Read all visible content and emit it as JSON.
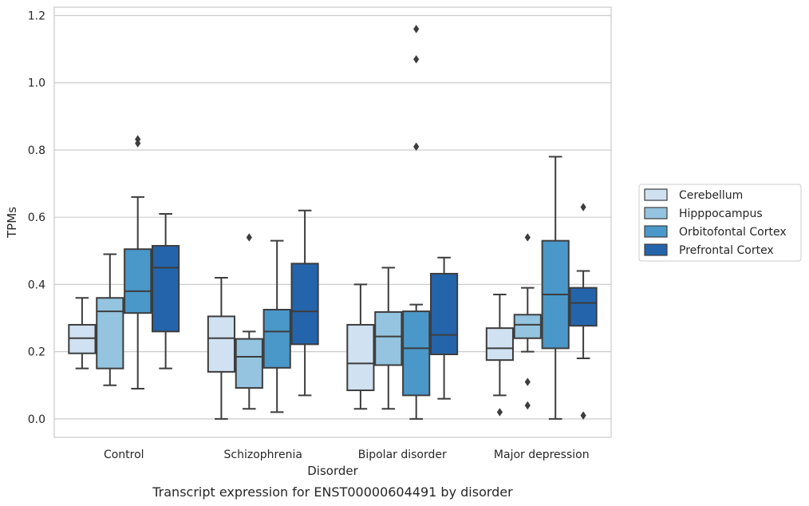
{
  "caption": "Transcript expression for ENST00000604491 by disorder",
  "chart_data": {
    "type": "box",
    "title": "",
    "xlabel": "Disorder",
    "ylabel": "TPMs",
    "ylim": [
      -0.055,
      1.225
    ],
    "yticks": [
      0.0,
      0.2,
      0.4,
      0.6,
      0.8,
      1.0,
      1.2
    ],
    "ytick_labels": [
      "0.0",
      "0.2",
      "0.4",
      "0.6",
      "0.8",
      "1.0",
      "1.2"
    ],
    "grid": "horizontal",
    "legend_position": "right",
    "categories": [
      "Control",
      "Schizophrenia",
      "Bipolar disorder",
      "Major depression"
    ],
    "series": [
      {
        "name": "Cerebellum",
        "color": "#d0e1f2",
        "boxes": [
          {
            "whisker_low": 0.15,
            "q1": 0.195,
            "median": 0.24,
            "q3": 0.28,
            "whisker_high": 0.36,
            "outliers": []
          },
          {
            "whisker_low": 0.0,
            "q1": 0.14,
            "median": 0.24,
            "q3": 0.305,
            "whisker_high": 0.42,
            "outliers": []
          },
          {
            "whisker_low": 0.03,
            "q1": 0.085,
            "median": 0.165,
            "q3": 0.28,
            "whisker_high": 0.4,
            "outliers": []
          },
          {
            "whisker_low": 0.07,
            "q1": 0.175,
            "median": 0.21,
            "q3": 0.27,
            "whisker_high": 0.37,
            "outliers": [
              0.02
            ]
          }
        ]
      },
      {
        "name": "Hipppocampus",
        "color": "#94c4df",
        "boxes": [
          {
            "whisker_low": 0.1,
            "q1": 0.15,
            "median": 0.32,
            "q3": 0.36,
            "whisker_high": 0.49,
            "outliers": []
          },
          {
            "whisker_low": 0.03,
            "q1": 0.092,
            "median": 0.185,
            "q3": 0.238,
            "whisker_high": 0.26,
            "outliers": [
              0.54
            ]
          },
          {
            "whisker_low": 0.03,
            "q1": 0.16,
            "median": 0.245,
            "q3": 0.318,
            "whisker_high": 0.45,
            "outliers": []
          },
          {
            "whisker_low": 0.2,
            "q1": 0.24,
            "median": 0.28,
            "q3": 0.31,
            "whisker_high": 0.39,
            "outliers": [
              0.04,
              0.11,
              0.54
            ]
          }
        ]
      },
      {
        "name": "Orbitofontal Cortex",
        "color": "#4a98c9",
        "boxes": [
          {
            "whisker_low": 0.09,
            "q1": 0.315,
            "median": 0.38,
            "q3": 0.505,
            "whisker_high": 0.66,
            "outliers": [
              0.82,
              0.832
            ]
          },
          {
            "whisker_low": 0.02,
            "q1": 0.152,
            "median": 0.26,
            "q3": 0.325,
            "whisker_high": 0.53,
            "outliers": []
          },
          {
            "whisker_low": 0.0,
            "q1": 0.07,
            "median": 0.21,
            "q3": 0.32,
            "whisker_high": 0.34,
            "outliers": [
              0.81,
              1.07,
              1.16
            ]
          },
          {
            "whisker_low": 0.0,
            "q1": 0.21,
            "median": 0.37,
            "q3": 0.53,
            "whisker_high": 0.78,
            "outliers": []
          }
        ]
      },
      {
        "name": "Prefrontal Cortex",
        "color": "#2464ab",
        "boxes": [
          {
            "whisker_low": 0.15,
            "q1": 0.26,
            "median": 0.45,
            "q3": 0.515,
            "whisker_high": 0.61,
            "outliers": []
          },
          {
            "whisker_low": 0.07,
            "q1": 0.222,
            "median": 0.32,
            "q3": 0.462,
            "whisker_high": 0.62,
            "outliers": []
          },
          {
            "whisker_low": 0.06,
            "q1": 0.192,
            "median": 0.25,
            "q3": 0.432,
            "whisker_high": 0.48,
            "outliers": []
          },
          {
            "whisker_low": 0.18,
            "q1": 0.277,
            "median": 0.345,
            "q3": 0.39,
            "whisker_high": 0.44,
            "outliers": [
              0.01,
              0.63
            ]
          }
        ]
      }
    ]
  }
}
